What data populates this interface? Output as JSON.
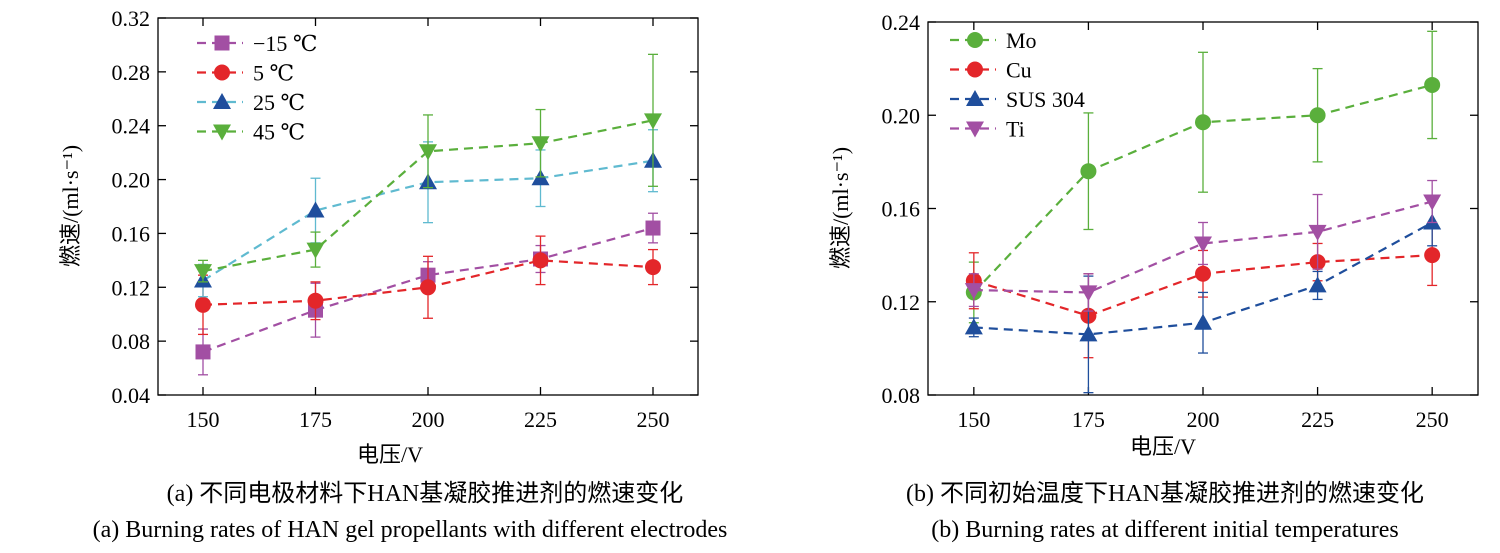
{
  "chart_data": [
    {
      "type": "line",
      "caption_cn": "(a) 不同电极材料下HAN基凝胶推进剂的燃速变化",
      "caption_en": "(a) Burning rates of HAN gel propellants with different electrodes",
      "xlabel": "电压/V",
      "ylabel": "燃速/(ml·s⁻¹)",
      "x": [
        150,
        175,
        200,
        225,
        250
      ],
      "xlim": [
        140,
        260
      ],
      "ylim": [
        0.04,
        0.32
      ],
      "xticks": [
        "150",
        "175",
        "200",
        "225",
        "250"
      ],
      "yticks": [
        "0.04",
        "0.08",
        "0.12",
        "0.16",
        "0.20",
        "0.24",
        "0.28",
        "0.32"
      ],
      "legend_position": "top-left",
      "series": [
        {
          "name": "−15 ℃",
          "color": "#a24fa3",
          "marker": "square",
          "values": [
            0.072,
            0.103,
            0.129,
            0.141,
            0.164
          ],
          "err": [
            0.017,
            0.02,
            0.01,
            0.01,
            0.011
          ]
        },
        {
          "name": "5 ℃",
          "color": "#e3262a",
          "marker": "circle",
          "values": [
            0.107,
            0.11,
            0.12,
            0.14,
            0.135
          ],
          "err": [
            0.022,
            0.014,
            0.023,
            0.018,
            0.013
          ]
        },
        {
          "name": "25 ℃",
          "color": "#5fbad0",
          "lineColor": "#5fbad0",
          "markerColor": "#1f4e9c",
          "marker": "triangle-up",
          "values": [
            0.125,
            0.177,
            0.198,
            0.201,
            0.214
          ],
          "err": [
            0.012,
            0.024,
            0.03,
            0.021,
            0.023
          ]
        },
        {
          "name": "45 ℃",
          "color": "#5aaf3c",
          "marker": "triangle-down",
          "values": [
            0.132,
            0.148,
            0.221,
            0.227,
            0.244
          ],
          "err": [
            0.008,
            0.013,
            0.027,
            0.025,
            0.049
          ]
        }
      ]
    },
    {
      "type": "line",
      "caption_cn": "(b) 不同初始温度下HAN基凝胶推进剂的燃速变化",
      "caption_en": "(b) Burning rates at different initial temperatures",
      "xlabel": "电压/V",
      "ylabel": "燃速/(ml·s⁻¹)",
      "x": [
        150,
        175,
        200,
        225,
        250
      ],
      "xlim": [
        140,
        260
      ],
      "ylim": [
        0.08,
        0.24
      ],
      "xticks": [
        "150",
        "175",
        "200",
        "225",
        "250"
      ],
      "yticks": [
        "0.08",
        "0.12",
        "0.16",
        "0.20",
        "0.24"
      ],
      "legend_position": "top-left",
      "series": [
        {
          "name": "Mo",
          "color": "#5aaf3c",
          "marker": "circle",
          "values": [
            0.124,
            0.176,
            0.197,
            0.2,
            0.213
          ],
          "err": [
            0.013,
            0.025,
            0.03,
            0.02,
            0.023
          ]
        },
        {
          "name": "Cu",
          "color": "#e3262a",
          "marker": "circle",
          "values": [
            0.129,
            0.114,
            0.132,
            0.137,
            0.14
          ],
          "err": [
            0.012,
            0.018,
            0.01,
            0.008,
            0.013
          ]
        },
        {
          "name": "SUS 304",
          "color": "#1f4e9c",
          "marker": "triangle-up",
          "values": [
            0.109,
            0.106,
            0.111,
            0.127,
            0.154
          ],
          "err": [
            0.004,
            0.025,
            0.013,
            0.006,
            0.01
          ]
        },
        {
          "name": "Ti",
          "color": "#a24fa3",
          "marker": "triangle-down",
          "values": [
            0.125,
            0.124,
            0.145,
            0.15,
            0.163
          ],
          "err": [
            0.007,
            0.008,
            0.009,
            0.016,
            0.009
          ]
        }
      ]
    }
  ]
}
